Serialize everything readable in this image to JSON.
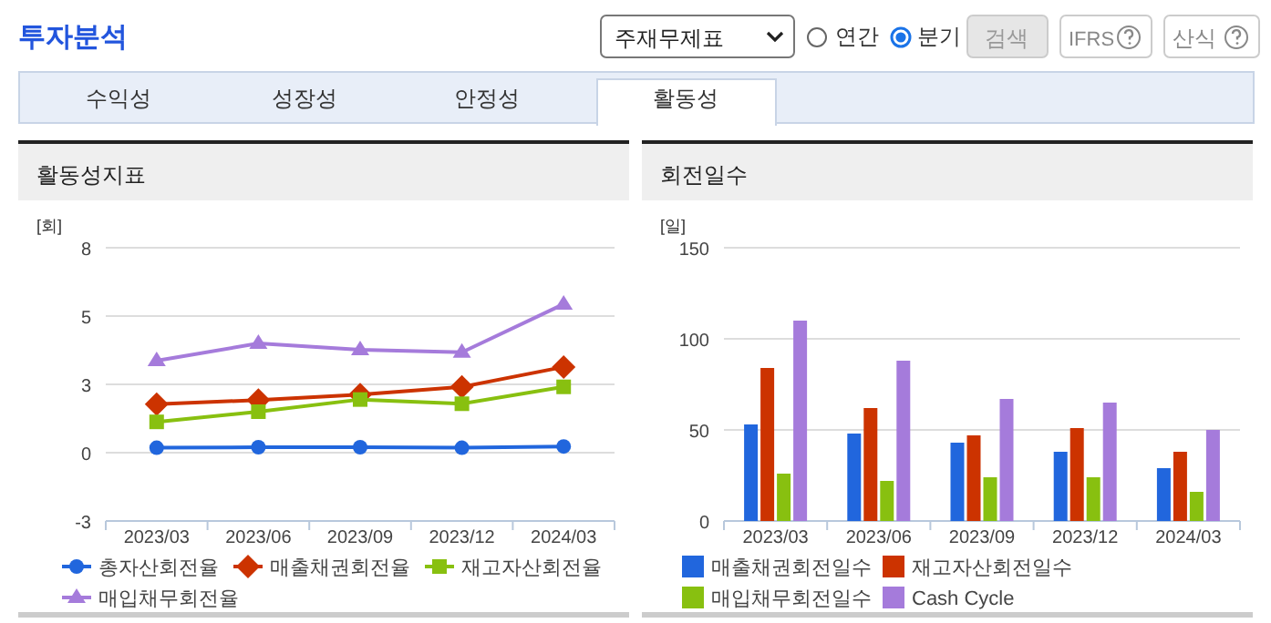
{
  "chart_data": [
    {
      "type": "line",
      "title": "활동성지표",
      "ylabel": "[회]",
      "categories": [
        "2023/03",
        "2023/06",
        "2023/09",
        "2023/12",
        "2024/03"
      ],
      "series": [
        {
          "name": "총자산회전율",
          "color": "#2166dd",
          "marker": "circle",
          "values": [
            0.2,
            0.22,
            0.22,
            0.2,
            0.25
          ]
        },
        {
          "name": "매출채권회전율",
          "color": "#cc3300",
          "marker": "diamond",
          "values": [
            1.95,
            2.12,
            2.34,
            2.65,
            3.45
          ]
        },
        {
          "name": "재고자산회전율",
          "color": "#88c010",
          "marker": "square",
          "values": [
            1.24,
            1.65,
            2.14,
            1.97,
            2.65
          ]
        },
        {
          "name": "매입채무회전율",
          "color": "#a57bdb",
          "marker": "triangle",
          "values": [
            3.7,
            4.4,
            4.14,
            4.04,
            5.98
          ]
        }
      ],
      "ylim": [
        -2.75,
        8.25
      ],
      "yticks": [
        {
          "value": -2.75,
          "label": "-3"
        },
        {
          "value": 0,
          "label": "0"
        },
        {
          "value": 2.75,
          "label": "3"
        },
        {
          "value": 5.5,
          "label": "5"
        },
        {
          "value": 8.25,
          "label": "8"
        }
      ],
      "grid": "y",
      "legend": "bottom",
      "annotations": [
        "투자분석",
        "주재무제표",
        "연간",
        "분기",
        "검색",
        "IFRS",
        "산식",
        "수익성",
        "성장성",
        "안정성",
        "활동성"
      ]
    },
    {
      "type": "bar",
      "title": "회전일수",
      "ylabel": "[일]",
      "categories": [
        "2023/03",
        "2023/06",
        "2023/09",
        "2023/12",
        "2024/03"
      ],
      "series": [
        {
          "name": "매출채권회전일수",
          "color": "#2166dd",
          "values": [
            53,
            48,
            43,
            38,
            29
          ]
        },
        {
          "name": "재고자산회전일수",
          "color": "#cc3300",
          "values": [
            84,
            62,
            47,
            51,
            38
          ]
        },
        {
          "name": "매입채무회전일수",
          "color": "#88c010",
          "values": [
            26,
            22,
            24,
            24,
            16
          ]
        },
        {
          "name": "Cash Cycle",
          "color": "#a57bdb",
          "values": [
            110,
            88,
            67,
            65,
            50
          ]
        }
      ],
      "ylim": [
        0,
        150
      ],
      "yticks": [
        0,
        50,
        100,
        150
      ],
      "grid": "y",
      "legend": "bottom"
    }
  ]
}
